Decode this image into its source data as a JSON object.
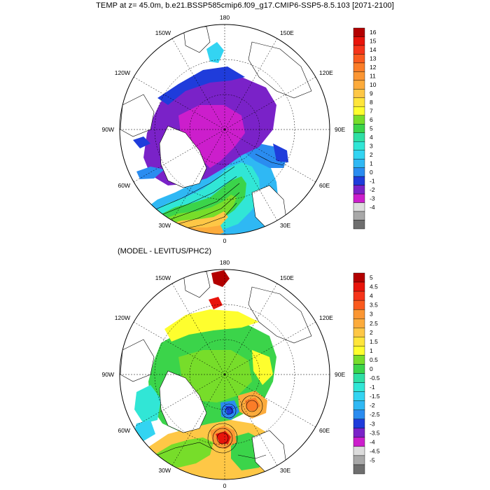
{
  "header": {
    "title": "TEMP at z=  45.0m, b.e21.BSSP585cmip6.f09_g17.CMIP6-SSP5-8.5.103 [2071-2100]",
    "subtitle": "(MODEL - LEVITUS/PHC2)"
  },
  "map": {
    "projection": "polar stereographic (north)",
    "longitude_labels": [
      "180",
      "150E",
      "120E",
      "90E",
      "60E",
      "30E",
      "0",
      "30W",
      "60W",
      "90W",
      "120W",
      "150W"
    ]
  },
  "panels": [
    {
      "id": "model-temperature",
      "colorbar_labels": [
        "16",
        "15",
        "14",
        "13",
        "12",
        "11",
        "10",
        "9",
        "8",
        "7",
        "6",
        "5",
        "4",
        "3",
        "2",
        "1",
        "0",
        "-1",
        "-2",
        "-3",
        "-4"
      ],
      "colorbar_colors": [
        "#b30000",
        "#e8140b",
        "#f5341a",
        "#fa5a1e",
        "#fb7d28",
        "#fb9633",
        "#fcab3c",
        "#fec746",
        "#ffe53b",
        "#fefe2e",
        "#77dd2a",
        "#3bd44a",
        "#2fdfa4",
        "#31e6d6",
        "#33d4f2",
        "#2fb8f4",
        "#2a8cf0",
        "#1f3cdb",
        "#7a22c8",
        "#cc1ecc",
        "#dcdcdc",
        "#a8a8a8",
        "#6e6e6e"
      ]
    },
    {
      "id": "model-minus-levitus",
      "colorbar_labels": [
        "5",
        "4.5",
        "4",
        "3.5",
        "3",
        "2.5",
        "2",
        "1.5",
        "1",
        "0.5",
        "0",
        "-0.5",
        "-1",
        "-1.5",
        "-2",
        "-2.5",
        "-3",
        "-3.5",
        "-4",
        "-4.5",
        "-5"
      ],
      "colorbar_colors": [
        "#b30000",
        "#e8140b",
        "#f5341a",
        "#fa5a1e",
        "#fb9633",
        "#fcab3c",
        "#fec746",
        "#ffe53b",
        "#fefe2e",
        "#77dd2a",
        "#3bd44a",
        "#2fdfa4",
        "#31e6d6",
        "#33d4f2",
        "#2fb8f4",
        "#2a8cf0",
        "#1f3cdb",
        "#7a22c8",
        "#cc1ecc",
        "#dcdcdc",
        "#a8a8a8",
        "#6e6e6e"
      ]
    }
  ]
}
